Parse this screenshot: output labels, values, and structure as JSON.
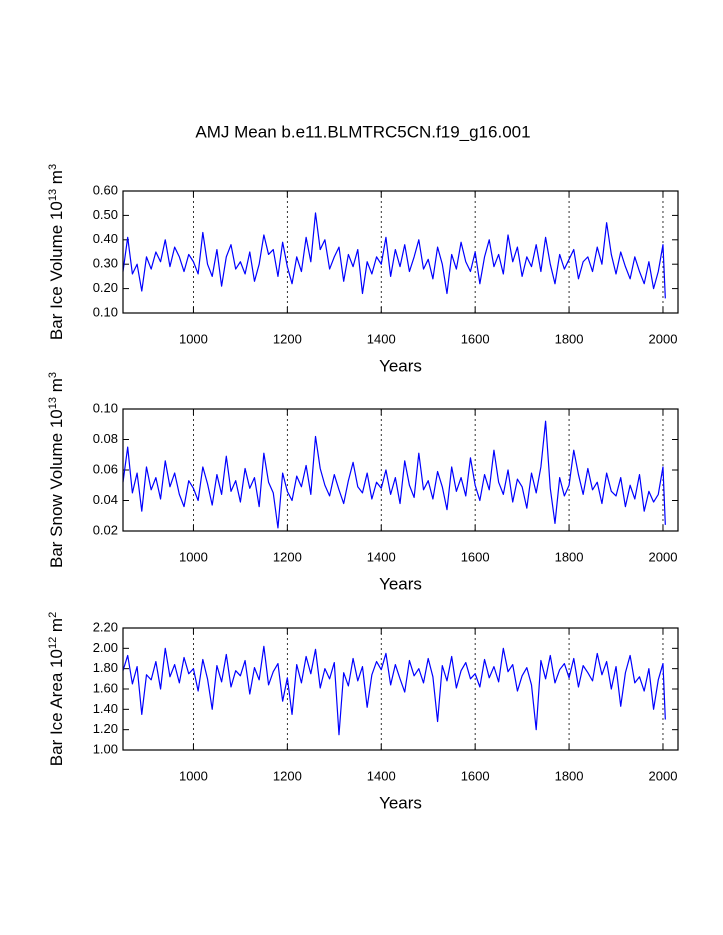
{
  "title": "AMJ Mean b.e11.BLMTRC5CN.f19_g16.001",
  "chart_data": [
    {
      "type": "line",
      "ylabel": [
        "Bar Ice Volume 10",
        "13",
        " m",
        "3"
      ],
      "xlabel": "Years",
      "xlim": [
        850,
        2032
      ],
      "xticks": [
        1000,
        1200,
        1400,
        1600,
        1800,
        2000
      ],
      "grid": "x",
      "ylim": [
        0.1,
        0.6
      ],
      "yticks": [
        {
          "value": 0.1,
          "label": "0.10"
        },
        {
          "value": 0.2,
          "label": "0.20"
        },
        {
          "value": 0.3,
          "label": "0.30"
        },
        {
          "value": 0.4,
          "label": "0.40"
        },
        {
          "value": 0.5,
          "label": "0.50"
        },
        {
          "value": 0.6,
          "label": "0.60"
        }
      ],
      "x": [
        850,
        860,
        870,
        880,
        890,
        900,
        910,
        920,
        930,
        940,
        950,
        960,
        970,
        980,
        990,
        1000,
        1010,
        1020,
        1030,
        1040,
        1050,
        1060,
        1070,
        1080,
        1090,
        1100,
        1110,
        1120,
        1130,
        1140,
        1150,
        1160,
        1170,
        1180,
        1190,
        1200,
        1210,
        1220,
        1230,
        1240,
        1250,
        1260,
        1270,
        1280,
        1290,
        1300,
        1310,
        1320,
        1330,
        1340,
        1350,
        1360,
        1370,
        1380,
        1390,
        1400,
        1410,
        1420,
        1430,
        1440,
        1450,
        1460,
        1470,
        1480,
        1490,
        1500,
        1510,
        1520,
        1530,
        1540,
        1550,
        1560,
        1570,
        1580,
        1590,
        1600,
        1610,
        1620,
        1630,
        1640,
        1650,
        1660,
        1670,
        1680,
        1690,
        1700,
        1710,
        1720,
        1730,
        1740,
        1750,
        1760,
        1770,
        1780,
        1790,
        1800,
        1810,
        1820,
        1830,
        1840,
        1850,
        1860,
        1870,
        1880,
        1890,
        1900,
        1910,
        1920,
        1930,
        1940,
        1950,
        1960,
        1970,
        1980,
        1990,
        2000,
        2005
      ],
      "series": [
        {
          "color": "#0000ff",
          "values": [
            0.27,
            0.41,
            0.26,
            0.3,
            0.19,
            0.33,
            0.28,
            0.35,
            0.31,
            0.4,
            0.29,
            0.37,
            0.33,
            0.27,
            0.34,
            0.31,
            0.26,
            0.43,
            0.3,
            0.25,
            0.36,
            0.21,
            0.33,
            0.38,
            0.28,
            0.31,
            0.26,
            0.35,
            0.23,
            0.3,
            0.42,
            0.34,
            0.36,
            0.25,
            0.39,
            0.29,
            0.22,
            0.33,
            0.27,
            0.41,
            0.31,
            0.51,
            0.36,
            0.4,
            0.28,
            0.33,
            0.37,
            0.23,
            0.34,
            0.29,
            0.36,
            0.18,
            0.31,
            0.26,
            0.33,
            0.3,
            0.41,
            0.25,
            0.36,
            0.29,
            0.38,
            0.27,
            0.33,
            0.4,
            0.28,
            0.32,
            0.24,
            0.37,
            0.3,
            0.18,
            0.34,
            0.28,
            0.39,
            0.31,
            0.27,
            0.35,
            0.22,
            0.33,
            0.4,
            0.29,
            0.34,
            0.26,
            0.42,
            0.31,
            0.37,
            0.25,
            0.33,
            0.29,
            0.38,
            0.27,
            0.41,
            0.3,
            0.22,
            0.34,
            0.28,
            0.32,
            0.36,
            0.24,
            0.31,
            0.33,
            0.27,
            0.37,
            0.3,
            0.47,
            0.34,
            0.26,
            0.35,
            0.29,
            0.24,
            0.33,
            0.27,
            0.22,
            0.31,
            0.2,
            0.27,
            0.38,
            0.16
          ]
        }
      ]
    },
    {
      "type": "line",
      "ylabel": [
        "Bar Snow Volume 10",
        "13",
        " m",
        "3"
      ],
      "xlabel": "Years",
      "xlim": [
        850,
        2032
      ],
      "xticks": [
        1000,
        1200,
        1400,
        1600,
        1800,
        2000
      ],
      "grid": "x",
      "ylim": [
        0.02,
        0.1
      ],
      "yticks": [
        {
          "value": 0.02,
          "label": "0.02"
        },
        {
          "value": 0.04,
          "label": "0.04"
        },
        {
          "value": 0.06,
          "label": "0.06"
        },
        {
          "value": 0.08,
          "label": "0.08"
        },
        {
          "value": 0.1,
          "label": "0.10"
        }
      ],
      "x": [
        850,
        860,
        870,
        880,
        890,
        900,
        910,
        920,
        930,
        940,
        950,
        960,
        970,
        980,
        990,
        1000,
        1010,
        1020,
        1030,
        1040,
        1050,
        1060,
        1070,
        1080,
        1090,
        1100,
        1110,
        1120,
        1130,
        1140,
        1150,
        1160,
        1170,
        1180,
        1190,
        1200,
        1210,
        1220,
        1230,
        1240,
        1250,
        1260,
        1270,
        1280,
        1290,
        1300,
        1310,
        1320,
        1330,
        1340,
        1350,
        1360,
        1370,
        1380,
        1390,
        1400,
        1410,
        1420,
        1430,
        1440,
        1450,
        1460,
        1470,
        1480,
        1490,
        1500,
        1510,
        1520,
        1530,
        1540,
        1550,
        1560,
        1570,
        1580,
        1590,
        1600,
        1610,
        1620,
        1630,
        1640,
        1650,
        1660,
        1670,
        1680,
        1690,
        1700,
        1710,
        1720,
        1730,
        1740,
        1750,
        1760,
        1770,
        1780,
        1790,
        1800,
        1810,
        1820,
        1830,
        1840,
        1850,
        1860,
        1870,
        1880,
        1890,
        1900,
        1910,
        1920,
        1930,
        1940,
        1950,
        1960,
        1970,
        1980,
        1990,
        2000,
        2005
      ],
      "series": [
        {
          "color": "#0000ff",
          "values": [
            0.052,
            0.075,
            0.045,
            0.058,
            0.033,
            0.062,
            0.047,
            0.055,
            0.041,
            0.066,
            0.049,
            0.058,
            0.044,
            0.036,
            0.053,
            0.048,
            0.04,
            0.062,
            0.051,
            0.037,
            0.057,
            0.044,
            0.069,
            0.046,
            0.053,
            0.039,
            0.061,
            0.048,
            0.055,
            0.036,
            0.071,
            0.052,
            0.045,
            0.022,
            0.058,
            0.046,
            0.04,
            0.056,
            0.049,
            0.063,
            0.044,
            0.082,
            0.061,
            0.05,
            0.043,
            0.057,
            0.047,
            0.038,
            0.053,
            0.065,
            0.049,
            0.045,
            0.058,
            0.041,
            0.052,
            0.048,
            0.06,
            0.044,
            0.055,
            0.038,
            0.066,
            0.05,
            0.042,
            0.071,
            0.047,
            0.053,
            0.041,
            0.059,
            0.049,
            0.034,
            0.062,
            0.046,
            0.055,
            0.043,
            0.068,
            0.05,
            0.04,
            0.057,
            0.047,
            0.073,
            0.052,
            0.044,
            0.06,
            0.039,
            0.054,
            0.049,
            0.035,
            0.058,
            0.045,
            0.062,
            0.092,
            0.048,
            0.025,
            0.055,
            0.043,
            0.05,
            0.073,
            0.057,
            0.044,
            0.061,
            0.047,
            0.052,
            0.038,
            0.058,
            0.046,
            0.043,
            0.055,
            0.036,
            0.05,
            0.041,
            0.057,
            0.033,
            0.046,
            0.039,
            0.044,
            0.062,
            0.024
          ]
        }
      ]
    },
    {
      "type": "line",
      "ylabel": [
        "Bar Ice Area 10",
        "12",
        " m",
        "2"
      ],
      "xlabel": "Years",
      "xlim": [
        850,
        2032
      ],
      "xticks": [
        1000,
        1200,
        1400,
        1600,
        1800,
        2000
      ],
      "grid": "x",
      "ylim": [
        1.0,
        2.2
      ],
      "yticks": [
        {
          "value": 1.0,
          "label": "1.00"
        },
        {
          "value": 1.2,
          "label": "1.20"
        },
        {
          "value": 1.4,
          "label": "1.40"
        },
        {
          "value": 1.6,
          "label": "1.60"
        },
        {
          "value": 1.8,
          "label": "1.80"
        },
        {
          "value": 2.0,
          "label": "2.00"
        },
        {
          "value": 2.2,
          "label": "2.20"
        }
      ],
      "x": [
        850,
        860,
        870,
        880,
        890,
        900,
        910,
        920,
        930,
        940,
        950,
        960,
        970,
        980,
        990,
        1000,
        1010,
        1020,
        1030,
        1040,
        1050,
        1060,
        1070,
        1080,
        1090,
        1100,
        1110,
        1120,
        1130,
        1140,
        1150,
        1160,
        1170,
        1180,
        1190,
        1200,
        1210,
        1220,
        1230,
        1240,
        1250,
        1260,
        1270,
        1280,
        1290,
        1300,
        1310,
        1320,
        1330,
        1340,
        1350,
        1360,
        1370,
        1380,
        1390,
        1400,
        1410,
        1420,
        1430,
        1440,
        1450,
        1460,
        1470,
        1480,
        1490,
        1500,
        1510,
        1520,
        1530,
        1540,
        1550,
        1560,
        1570,
        1580,
        1590,
        1600,
        1610,
        1620,
        1630,
        1640,
        1650,
        1660,
        1670,
        1680,
        1690,
        1700,
        1710,
        1720,
        1730,
        1740,
        1750,
        1760,
        1770,
        1780,
        1790,
        1800,
        1810,
        1820,
        1830,
        1840,
        1850,
        1860,
        1870,
        1880,
        1890,
        1900,
        1910,
        1920,
        1930,
        1940,
        1950,
        1960,
        1970,
        1980,
        1990,
        2000,
        2005
      ],
      "series": [
        {
          "color": "#0000ff",
          "values": [
            1.78,
            1.93,
            1.65,
            1.82,
            1.35,
            1.74,
            1.69,
            1.87,
            1.6,
            2.0,
            1.72,
            1.84,
            1.66,
            1.91,
            1.75,
            1.8,
            1.58,
            1.89,
            1.7,
            1.4,
            1.83,
            1.67,
            1.94,
            1.62,
            1.78,
            1.73,
            1.88,
            1.55,
            1.81,
            1.69,
            2.02,
            1.64,
            1.77,
            1.85,
            1.48,
            1.71,
            1.35,
            1.84,
            1.66,
            1.92,
            1.75,
            1.99,
            1.61,
            1.8,
            1.7,
            1.86,
            1.15,
            1.76,
            1.63,
            1.9,
            1.68,
            1.82,
            1.42,
            1.74,
            1.87,
            1.79,
            1.95,
            1.64,
            1.84,
            1.7,
            1.57,
            1.88,
            1.73,
            1.8,
            1.66,
            1.9,
            1.72,
            1.28,
            1.83,
            1.68,
            1.92,
            1.61,
            1.78,
            1.86,
            1.7,
            1.75,
            1.62,
            1.89,
            1.71,
            1.82,
            1.67,
            2.0,
            1.77,
            1.84,
            1.58,
            1.73,
            1.81,
            1.64,
            1.2,
            1.88,
            1.7,
            1.93,
            1.66,
            1.79,
            1.85,
            1.71,
            1.9,
            1.62,
            1.83,
            1.76,
            1.68,
            1.95,
            1.74,
            1.87,
            1.6,
            1.82,
            1.43,
            1.76,
            1.93,
            1.66,
            1.72,
            1.58,
            1.8,
            1.4,
            1.69,
            1.85,
            1.3
          ]
        }
      ]
    }
  ]
}
